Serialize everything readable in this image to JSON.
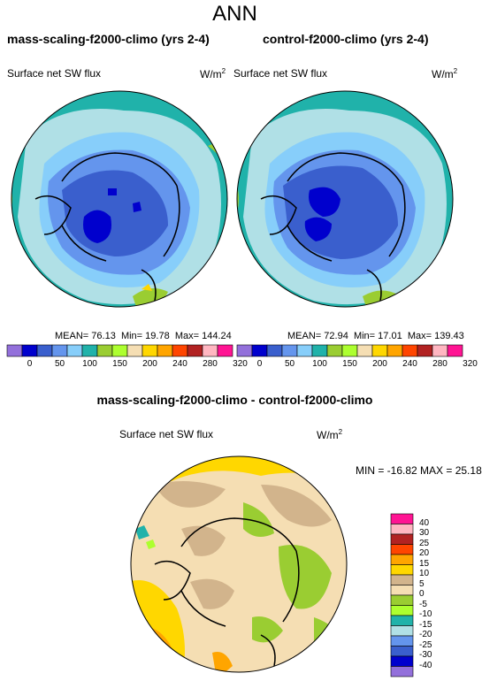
{
  "title": "ANN",
  "panels": [
    {
      "title": "mass-scaling-f2000-climo (yrs 2-4)",
      "variable": "Surface net SW flux",
      "units": "W/m",
      "units_sup": "2",
      "stats": {
        "mean_label": "MEAN=",
        "mean": "76.13",
        "min_label": "Min=",
        "min": "19.78",
        "max_label": "Max=",
        "max": "144.24"
      }
    },
    {
      "title": "control-f2000-climo (yrs 2-4)",
      "variable": "Surface net SW flux",
      "units": "W/m",
      "units_sup": "2",
      "stats": {
        "mean_label": "MEAN=",
        "mean": "72.94",
        "min_label": "Min=",
        "min": "17.01",
        "max_label": "Max=",
        "max": "139.43"
      }
    }
  ],
  "abs_colorbar": {
    "colors": [
      "#9370db",
      "#0000cd",
      "#3a5fcd",
      "#6495ed",
      "#87cefa",
      "#20b2aa",
      "#9acd32",
      "#adff2f",
      "#f5deb3",
      "#ffd700",
      "#ffa500",
      "#ff4500",
      "#b22222",
      "#ffb6c1",
      "#ff1493"
    ],
    "labels": [
      "0",
      "50",
      "100",
      "150",
      "200",
      "240",
      "280",
      "320"
    ],
    "full_ticks": [
      "",
      "0",
      "",
      "50",
      "",
      "100",
      "",
      "150",
      "",
      "200",
      "",
      "240",
      "",
      "280",
      "",
      "320"
    ]
  },
  "diff": {
    "title": "mass-scaling-f2000-climo - control-f2000-climo",
    "variable": "Surface net SW flux",
    "units": "W/m",
    "units_sup": "2",
    "minmax": "MIN = -16.82  MAX =  25.18",
    "colors": [
      "#ff1493",
      "#ffb6c1",
      "#b22222",
      "#ff4500",
      "#ffa500",
      "#ffd700",
      "#d2b48c",
      "#f5deb3",
      "#9acd32",
      "#adff2f",
      "#20b2aa",
      "#b0e0e6",
      "#6495ed",
      "#3a5fcd",
      "#0000cd",
      "#9370db"
    ],
    "labels": [
      "40",
      "30",
      "25",
      "20",
      "15",
      "10",
      "5",
      "0",
      "-5",
      "-10",
      "-15",
      "-20",
      "-25",
      "-30",
      "-40"
    ]
  },
  "colors": {
    "land_outline": "#000000"
  }
}
